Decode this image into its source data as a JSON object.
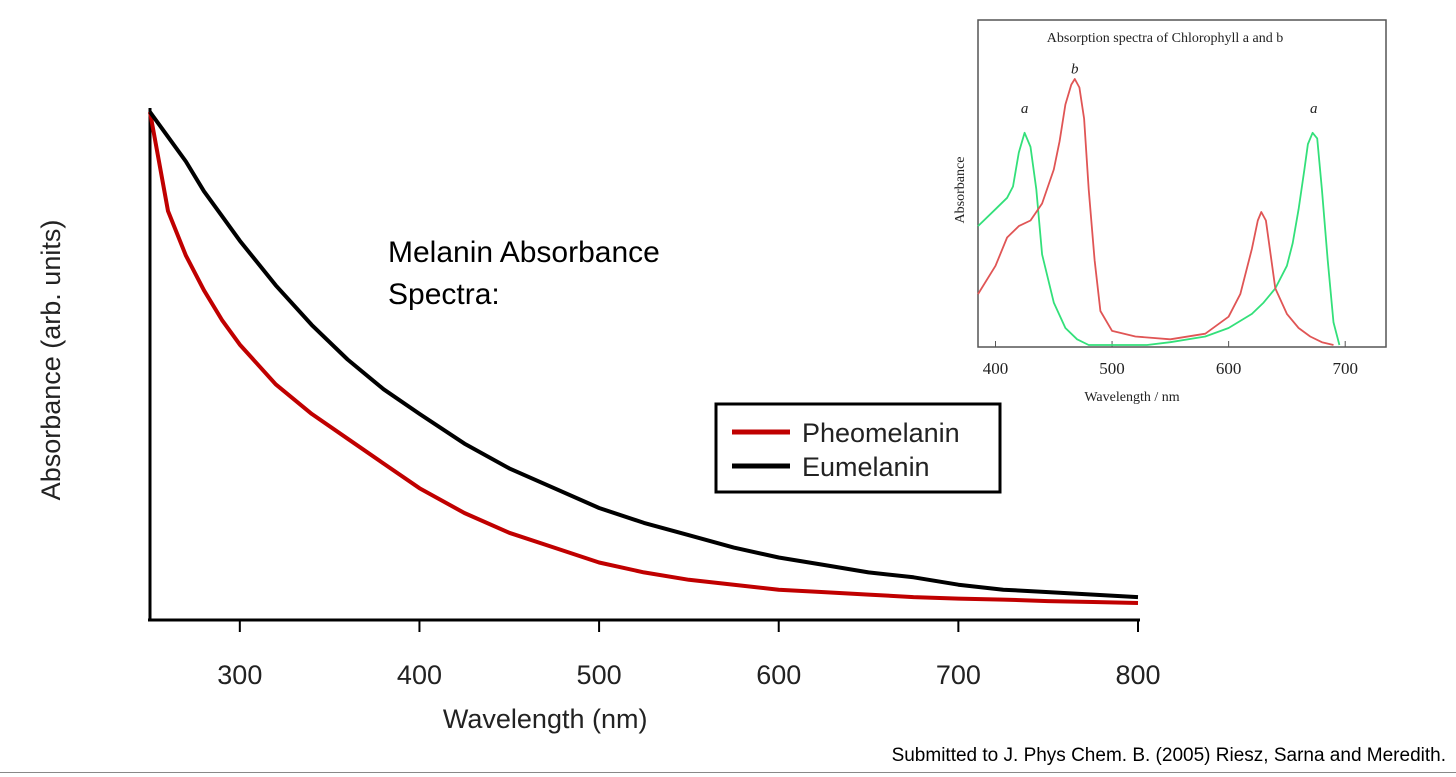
{
  "credit": "Submitted to J. Phys Chem. B. (2005) Riesz, Sarna and Meredith.",
  "chart_data": [
    {
      "type": "line",
      "title": "Melanin Absorbance Spectra:",
      "xlabel": "Wavelength (nm)",
      "ylabel": "Absorbance (arb. units)",
      "xlim": [
        250,
        800
      ],
      "ylim": [
        0,
        1
      ],
      "x_ticks": [
        "300",
        "400",
        "500",
        "600",
        "700",
        "800"
      ],
      "y_ticks": [],
      "grid": false,
      "legend_position": "center-right",
      "series": [
        {
          "name": "Pheomelanin",
          "color": "#c00000",
          "x": [
            250,
            260,
            270,
            280,
            290,
            300,
            320,
            340,
            360,
            380,
            400,
            425,
            450,
            475,
            500,
            525,
            550,
            575,
            600,
            625,
            650,
            675,
            700,
            725,
            750,
            775,
            800
          ],
          "y": [
            1.0,
            0.8,
            0.71,
            0.64,
            0.58,
            0.53,
            0.45,
            0.39,
            0.34,
            0.29,
            0.24,
            0.19,
            0.15,
            0.12,
            0.09,
            0.07,
            0.055,
            0.045,
            0.035,
            0.03,
            0.025,
            0.02,
            0.017,
            0.015,
            0.012,
            0.01,
            0.008
          ]
        },
        {
          "name": "Eumelanin",
          "color": "#000000",
          "x": [
            250,
            260,
            270,
            280,
            290,
            300,
            320,
            340,
            360,
            380,
            400,
            425,
            450,
            475,
            500,
            525,
            550,
            575,
            600,
            625,
            650,
            675,
            700,
            725,
            750,
            775,
            800
          ],
          "y": [
            1.0,
            0.95,
            0.9,
            0.84,
            0.79,
            0.74,
            0.65,
            0.57,
            0.5,
            0.44,
            0.39,
            0.33,
            0.28,
            0.24,
            0.2,
            0.17,
            0.145,
            0.12,
            0.1,
            0.085,
            0.07,
            0.06,
            0.045,
            0.035,
            0.03,
            0.025,
            0.02
          ]
        }
      ]
    },
    {
      "type": "line",
      "title": "Absorption spectra of Chlorophyll a and b",
      "xlabel": "Wavelength / nm",
      "ylabel": "Absorbance",
      "xlim": [
        385,
        735
      ],
      "ylim": [
        0,
        1
      ],
      "x_ticks": [
        "400",
        "500",
        "600",
        "700"
      ],
      "annotations": [
        {
          "text": "a",
          "x": 425,
          "y": 0.82
        },
        {
          "text": "b",
          "x": 468,
          "y": 0.96
        },
        {
          "text": "a",
          "x": 673,
          "y": 0.82
        }
      ],
      "series": [
        {
          "name": "a",
          "color": "#33e07a",
          "x": [
            385,
            400,
            410,
            415,
            420,
            425,
            430,
            435,
            440,
            450,
            460,
            470,
            480,
            500,
            530,
            550,
            580,
            600,
            620,
            630,
            640,
            650,
            655,
            660,
            665,
            668,
            672,
            676,
            680,
            685,
            690,
            695
          ],
          "y": [
            0.42,
            0.48,
            0.52,
            0.56,
            0.68,
            0.75,
            0.7,
            0.55,
            0.32,
            0.15,
            0.06,
            0.02,
            0.0,
            0.0,
            0.0,
            0.01,
            0.03,
            0.06,
            0.11,
            0.15,
            0.2,
            0.28,
            0.36,
            0.48,
            0.62,
            0.71,
            0.75,
            0.73,
            0.55,
            0.3,
            0.08,
            0.0
          ]
        },
        {
          "name": "b",
          "color": "#e05555",
          "x": [
            385,
            400,
            410,
            420,
            430,
            440,
            450,
            455,
            460,
            465,
            468,
            472,
            476,
            480,
            485,
            490,
            500,
            520,
            550,
            580,
            600,
            610,
            620,
            625,
            628,
            632,
            636,
            640,
            650,
            660,
            670,
            680,
            690
          ],
          "y": [
            0.18,
            0.28,
            0.38,
            0.42,
            0.44,
            0.5,
            0.62,
            0.72,
            0.85,
            0.92,
            0.94,
            0.91,
            0.8,
            0.55,
            0.3,
            0.12,
            0.05,
            0.03,
            0.02,
            0.04,
            0.1,
            0.18,
            0.34,
            0.44,
            0.47,
            0.44,
            0.32,
            0.2,
            0.11,
            0.06,
            0.03,
            0.01,
            0.0
          ]
        }
      ]
    }
  ]
}
